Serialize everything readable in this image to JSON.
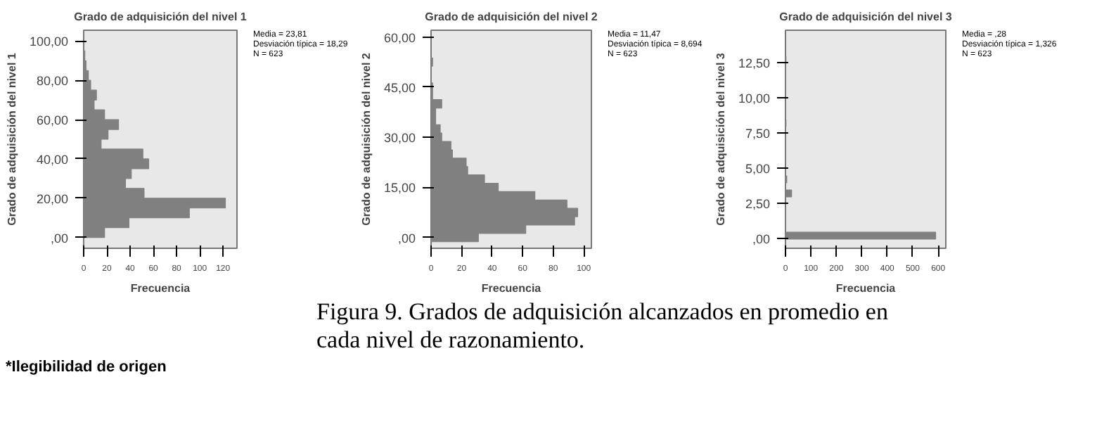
{
  "chart_data": [
    {
      "type": "histogram",
      "orientation": "horizontal",
      "title": "Grado de adquisición del nivel 1",
      "xlabel": "Frecuencia",
      "ylabel": "Grado de adquisición del nivel 1",
      "color": "#808080",
      "bins": [
        0,
        5,
        10,
        15,
        20,
        25,
        30,
        35,
        40,
        45,
        50,
        55,
        60,
        65,
        70,
        75,
        80,
        85,
        90,
        95
      ],
      "values": [
        18,
        39,
        91,
        122,
        52,
        36,
        41,
        56,
        51,
        15,
        21,
        30,
        18,
        9,
        11,
        6,
        4,
        2,
        1
      ],
      "ylim": [
        -5.5,
        105.5
      ],
      "yticks": [
        {
          "value": 0,
          "label": ",00"
        },
        {
          "value": 20,
          "label": "20,00"
        },
        {
          "value": 40,
          "label": "40,00"
        },
        {
          "value": 60,
          "label": "60,00"
        },
        {
          "value": 80,
          "label": "80,00"
        },
        {
          "value": 100,
          "label": "100,00"
        }
      ],
      "xlim": [
        0,
        132
      ],
      "xticks": [
        0,
        20,
        40,
        60,
        80,
        100,
        120
      ],
      "annotations": [
        "Media = 23,81",
        "Desviación típica = 18,29",
        "N = 623",
        "Figura 9. Grados de adquisición alcanzados en promedio en",
        "cada nivel de razonamiento.",
        "*Ilegibilidad de origen"
      ]
    },
    {
      "type": "histogram",
      "orientation": "horizontal",
      "title": "Grado de adquisición del nivel 2",
      "xlabel": "Frecuencia",
      "ylabel": "Grado de adquisición del nivel 2",
      "color": "#808080",
      "bins": [
        -1.25,
        1.25,
        3.75,
        6.25,
        8.75,
        11.25,
        13.75,
        16.25,
        18.75,
        21.25,
        23.75,
        26.25,
        28.75,
        31.25,
        33.75,
        36.25,
        38.75,
        41.25,
        43.75,
        46.25,
        48.75,
        51.25,
        53.75
      ],
      "values": [
        31,
        62,
        94,
        96,
        89,
        68,
        44,
        35,
        24,
        23,
        14,
        13,
        7,
        6,
        3,
        3,
        7,
        1,
        1,
        0,
        0,
        1
      ],
      "ylim": [
        -3.2,
        62
      ],
      "yticks": [
        {
          "value": 0,
          "label": ",00"
        },
        {
          "value": 15,
          "label": "15,00"
        },
        {
          "value": 30,
          "label": "30,00"
        },
        {
          "value": 45,
          "label": "45,00"
        },
        {
          "value": 60,
          "label": "60,00"
        }
      ],
      "xlim": [
        0,
        105
      ],
      "xticks": [
        0,
        20,
        40,
        60,
        80,
        100
      ],
      "annotations": [
        "Media = 11,47",
        "Desviación típica = 8,694",
        "N = 623"
      ]
    },
    {
      "type": "histogram",
      "orientation": "horizontal",
      "title": "Grado de adquisición del nivel 3",
      "xlabel": "Frecuencia",
      "ylabel": "Grado de adquisición del nivel 3",
      "color": "#808080",
      "bins": [
        -0.05,
        0.45,
        0.95,
        1.45,
        1.95,
        2.45,
        2.95,
        3.45,
        3.95,
        4.45,
        4.95,
        5.45,
        5.95,
        6.45,
        6.95,
        7.45,
        7.95,
        8.45,
        8.95,
        9.45,
        9.95,
        10.45,
        10.95,
        11.45,
        11.95,
        12.45,
        12.95
      ],
      "values": [
        590,
        0,
        0,
        0,
        0,
        0,
        24,
        0,
        5,
        0,
        0,
        0,
        0,
        0,
        0,
        0,
        2,
        0,
        0,
        0,
        0,
        0,
        0,
        0,
        0,
        2
      ],
      "ylim": [
        -0.7,
        14.8
      ],
      "yticks": [
        {
          "value": 0,
          "label": ",00"
        },
        {
          "value": 2.5,
          "label": "2,50"
        },
        {
          "value": 5,
          "label": "5,00"
        },
        {
          "value": 7.5,
          "label": "7,50"
        },
        {
          "value": 10,
          "label": "10,00"
        },
        {
          "value": 12.5,
          "label": "12,50"
        }
      ],
      "xlim": [
        0,
        630
      ],
      "xticks": [
        0,
        100,
        200,
        300,
        400,
        500,
        600
      ],
      "annotations": [
        "Media = ,28",
        "Desviación típica = 1,326",
        "N = 623"
      ]
    }
  ]
}
